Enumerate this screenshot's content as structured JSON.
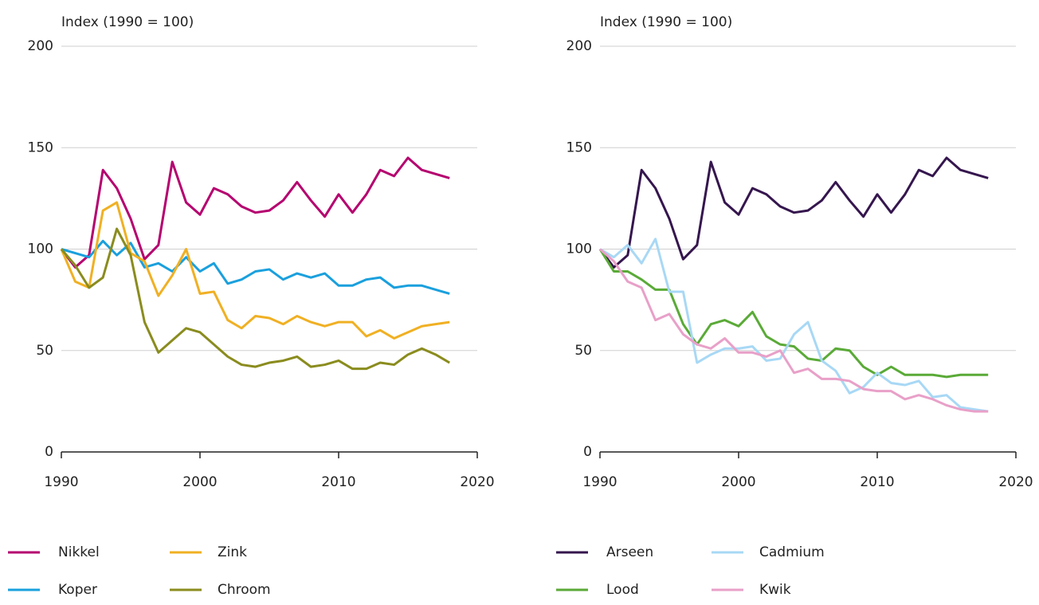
{
  "chart_data": [
    {
      "type": "line",
      "y_label": "Index (1990 = 100)",
      "x": [
        1990,
        1991,
        1992,
        1993,
        1994,
        1995,
        1996,
        1997,
        1998,
        1999,
        2000,
        2001,
        2002,
        2003,
        2004,
        2005,
        2006,
        2007,
        2008,
        2009,
        2010,
        2011,
        2012,
        2013,
        2014,
        2015,
        2016,
        2017,
        2018
      ],
      "xlim": [
        1990,
        2020
      ],
      "xticks": [
        1990,
        2000,
        2010,
        2020
      ],
      "ylim": [
        0,
        200
      ],
      "yticks": [
        0,
        50,
        100,
        150,
        200
      ],
      "grid": true,
      "series": [
        {
          "name": "Nikkel",
          "color": "#b5006f",
          "values": [
            100,
            91,
            97,
            139,
            130,
            115,
            95,
            102,
            143,
            123,
            117,
            130,
            127,
            121,
            118,
            119,
            124,
            133,
            124,
            116,
            127,
            118,
            127,
            139,
            136,
            145,
            139,
            137,
            135
          ]
        },
        {
          "name": "Koper",
          "color": "#1aa0dd",
          "values": [
            100,
            98,
            96,
            104,
            97,
            103,
            91,
            93,
            89,
            96,
            89,
            93,
            83,
            85,
            89,
            90,
            85,
            88,
            86,
            88,
            82,
            82,
            85,
            86,
            81,
            82,
            82,
            80,
            78
          ]
        },
        {
          "name": "Zink",
          "color": "#f0b023",
          "values": [
            100,
            84,
            81,
            119,
            123,
            98,
            94,
            77,
            87,
            100,
            78,
            79,
            65,
            61,
            67,
            66,
            63,
            67,
            64,
            62,
            64,
            64,
            57,
            60,
            56,
            59,
            62,
            63,
            64
          ]
        },
        {
          "name": "Chroom",
          "color": "#8a8c1e",
          "values": [
            100,
            92,
            81,
            86,
            110,
            97,
            64,
            49,
            55,
            61,
            59,
            53,
            47,
            43,
            42,
            44,
            45,
            47,
            42,
            43,
            45,
            41,
            41,
            44,
            43,
            48,
            51,
            48,
            44
          ]
        }
      ]
    },
    {
      "type": "line",
      "y_label": "Index (1990 = 100)",
      "x": [
        1990,
        1991,
        1992,
        1993,
        1994,
        1995,
        1996,
        1997,
        1998,
        1999,
        2000,
        2001,
        2002,
        2003,
        2004,
        2005,
        2006,
        2007,
        2008,
        2009,
        2010,
        2011,
        2012,
        2013,
        2014,
        2015,
        2016,
        2017,
        2018
      ],
      "xlim": [
        1990,
        2020
      ],
      "xticks": [
        1990,
        2000,
        2010,
        2020
      ],
      "ylim": [
        0,
        200
      ],
      "yticks": [
        0,
        50,
        100,
        150,
        200
      ],
      "grid": true,
      "series": [
        {
          "name": "Arseen",
          "color": "#35164e",
          "values": [
            100,
            91,
            97,
            139,
            130,
            115,
            95,
            102,
            143,
            123,
            117,
            130,
            127,
            121,
            118,
            119,
            124,
            133,
            124,
            116,
            127,
            118,
            127,
            139,
            136,
            145,
            139,
            137,
            135
          ]
        },
        {
          "name": "Lood",
          "color": "#5aaa37",
          "values": [
            100,
            89,
            89,
            85,
            80,
            80,
            63,
            53,
            63,
            65,
            62,
            69,
            57,
            53,
            52,
            46,
            45,
            51,
            50,
            42,
            38,
            42,
            38,
            38,
            38,
            37,
            38,
            38,
            38
          ]
        },
        {
          "name": "Cadmium",
          "color": "#a8d8f5",
          "values": [
            100,
            96,
            102,
            93,
            105,
            79,
            79,
            44,
            48,
            51,
            51,
            52,
            45,
            46,
            58,
            64,
            45,
            40,
            29,
            32,
            39,
            34,
            33,
            35,
            27,
            28,
            22,
            21,
            20
          ]
        },
        {
          "name": "Kwik",
          "color": "#e8a0c8",
          "values": [
            100,
            94,
            84,
            81,
            65,
            68,
            58,
            53,
            51,
            56,
            49,
            49,
            47,
            50,
            39,
            41,
            36,
            36,
            35,
            31,
            30,
            30,
            26,
            28,
            26,
            23,
            21,
            20,
            20
          ]
        }
      ]
    }
  ]
}
